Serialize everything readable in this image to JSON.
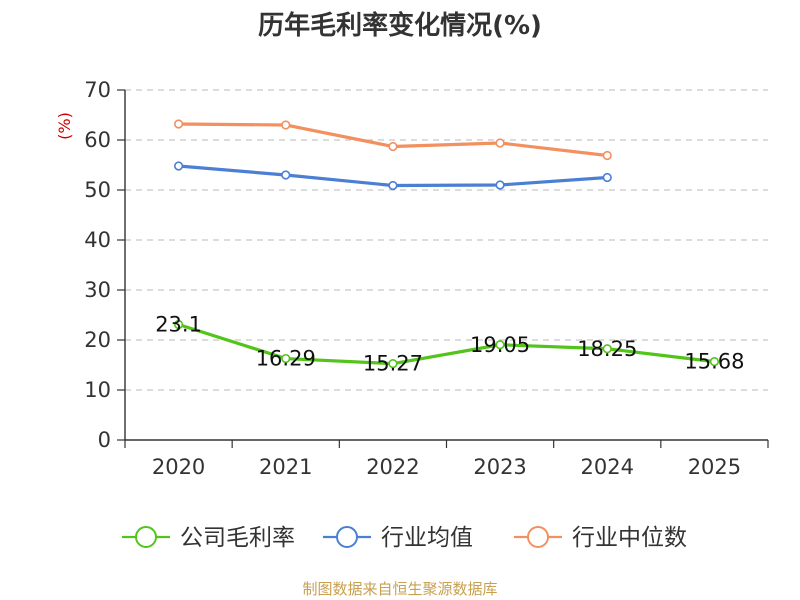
{
  "chart_data": {
    "type": "line",
    "title": "历年毛利率变化情况(%)",
    "ylabel": "(%)",
    "xlabel": "",
    "categories": [
      "2020",
      "2021",
      "2022",
      "2023",
      "2024",
      "2025"
    ],
    "ylim": [
      0,
      70
    ],
    "yticks": [
      0,
      10,
      20,
      30,
      40,
      50,
      60,
      70
    ],
    "grid": true,
    "legend_position": "bottom",
    "series": [
      {
        "name": "公司毛利率",
        "color": "#52c41a",
        "values": [
          23.1,
          16.29,
          15.27,
          19.05,
          18.25,
          15.68
        ],
        "labels": [
          "23.1",
          "16.29",
          "15.27",
          "19.05",
          "18.25",
          "15.68"
        ]
      },
      {
        "name": "行业均值",
        "color": "#4a7fd4",
        "values": [
          54.8,
          53.0,
          50.9,
          51.0,
          52.5,
          null
        ],
        "labels": null
      },
      {
        "name": "行业中位数",
        "color": "#f39060",
        "values": [
          63.2,
          63.0,
          58.7,
          59.4,
          56.9,
          null
        ],
        "labels": null
      }
    ]
  },
  "source": "制图数据来自恒生聚源数据库"
}
